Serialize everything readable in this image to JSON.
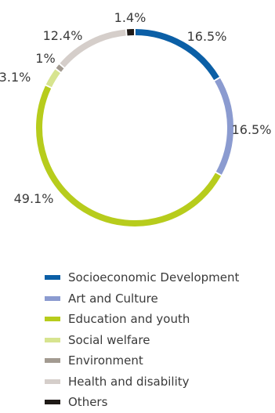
{
  "chart_data": {
    "type": "pie",
    "title": "",
    "categories": [
      "Socioeconomic Development",
      "Art and Culture",
      "Education and youth",
      "Social welfare",
      "Environment",
      "Health and disability",
      "Others"
    ],
    "values": [
      16.5,
      16.5,
      49.1,
      3.1,
      1,
      12.4,
      1.4
    ],
    "value_labels": [
      "16.5%",
      "16.5%",
      "49.1%",
      "3.1%",
      "1%",
      "12.4%",
      "1.4%"
    ],
    "colors": [
      "#0b5fa6",
      "#8b9bd0",
      "#b7cc1c",
      "#d7e48f",
      "#a39b91",
      "#d5ceca",
      "#1f1a17"
    ],
    "style": "donut",
    "legend_position": "bottom"
  }
}
